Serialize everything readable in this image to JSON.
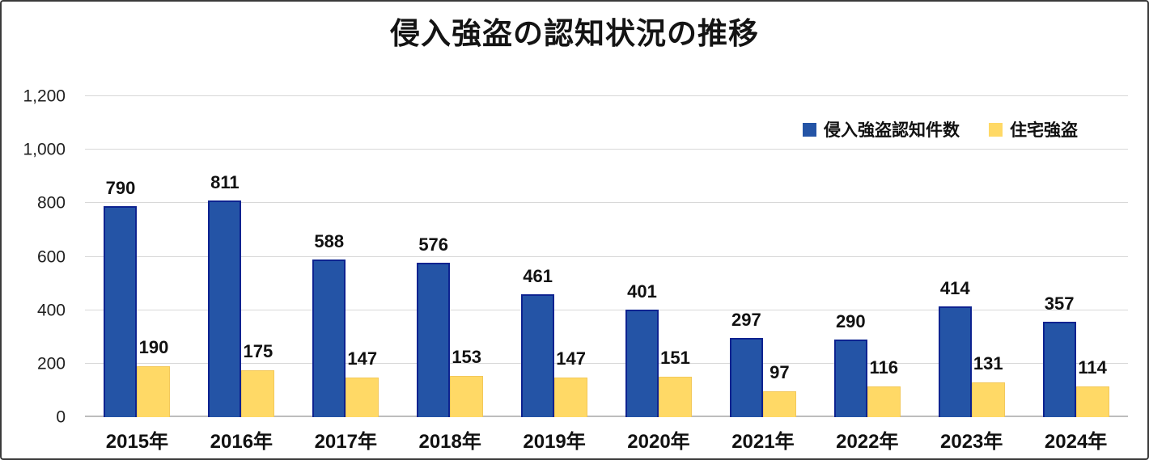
{
  "chart_data": {
    "type": "bar",
    "title": "侵入強盗の認知状況の推移",
    "categories": [
      "2015年",
      "2016年",
      "2017年",
      "2018年",
      "2019年",
      "2020年",
      "2021年",
      "2022年",
      "2023年",
      "2024年"
    ],
    "series": [
      {
        "name": "侵入強盗認知件数",
        "color": "#2454a6",
        "border_color": "#0d2390",
        "values": [
          790,
          811,
          588,
          576,
          461,
          401,
          297,
          290,
          414,
          357
        ]
      },
      {
        "name": "住宅強盗",
        "color": "#ffd966",
        "border_color": "#f3c85a",
        "values": [
          190,
          175,
          147,
          153,
          147,
          151,
          97,
          116,
          131,
          114
        ]
      }
    ],
    "xlabel": "",
    "ylabel": "",
    "ylim": [
      0,
      1200
    ],
    "ytick_interval": 200,
    "yticks": [
      "0",
      "200",
      "400",
      "600",
      "800",
      "1,000",
      "1,200"
    ],
    "grid": true,
    "data_labels": true,
    "legend_position": "top-right"
  },
  "colors": {
    "background": "#ffffff",
    "frame_border": "#3a3a3a",
    "gridline": "#d8d8d8",
    "axis_line": "#bdbdbd",
    "text": "#111111"
  }
}
